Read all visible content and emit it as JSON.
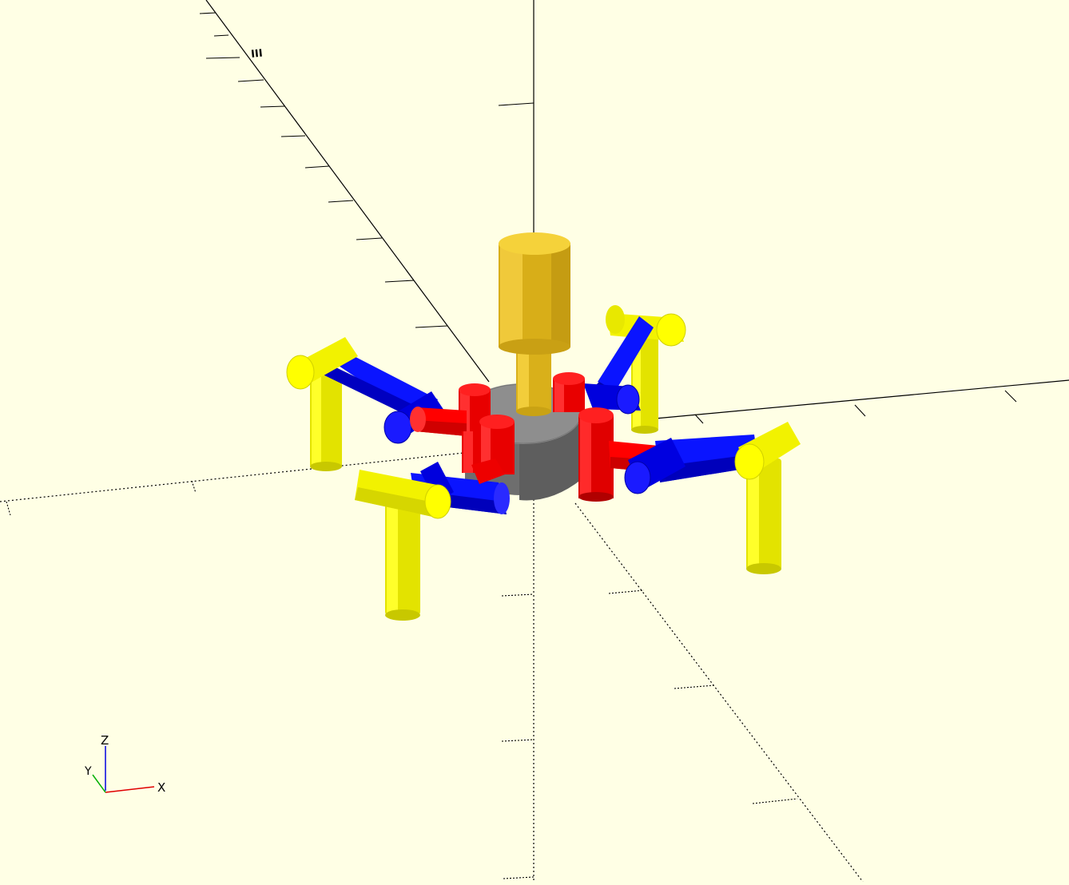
{
  "viewport": {
    "background": "#ffffe5"
  },
  "axes_widget": {
    "label_x": "X",
    "label_y": "Y",
    "label_z": "Z",
    "color_x": "#e00000",
    "color_y": "#00b000",
    "color_z": "#0000e0"
  },
  "scale_marker": {
    "label": "III"
  },
  "model": {
    "name_icon": "hexapod-robot-model",
    "colors": {
      "body": "#7a7a7a",
      "body_top": "#9a9a9a",
      "mast": "#e8c31c",
      "hip": "#ff0000",
      "thigh": "#0000ff",
      "foot": "#ffff00"
    }
  }
}
